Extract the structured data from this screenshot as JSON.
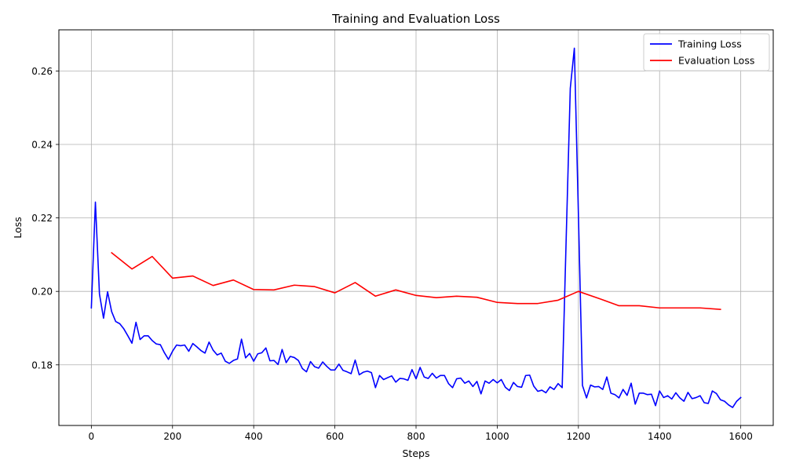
{
  "chart_data": {
    "type": "line",
    "title": "Training and Evaluation Loss",
    "xlabel": "Steps",
    "ylabel": "Loss",
    "xlim": [
      -80,
      1680
    ],
    "ylim": [
      0.1635,
      0.2712
    ],
    "xticks": [
      0,
      200,
      400,
      600,
      800,
      1000,
      1200,
      1400,
      1600
    ],
    "yticks": [
      0.18,
      0.2,
      0.22,
      0.24,
      0.26
    ],
    "xtick_labels": [
      "0",
      "200",
      "400",
      "600",
      "800",
      "1000",
      "1200",
      "1400",
      "1600"
    ],
    "ytick_labels": [
      "0.18",
      "0.20",
      "0.22",
      "0.24",
      "0.26"
    ],
    "grid": true,
    "legend_position": "top-right",
    "series": [
      {
        "name": "Training Loss",
        "color": "#0000ff",
        "x": [
          0,
          10,
          20,
          30,
          40,
          50,
          60,
          70,
          80,
          90,
          100,
          110,
          120,
          130,
          140,
          150,
          160,
          170,
          180,
          190,
          200,
          210,
          220,
          230,
          240,
          250,
          260,
          270,
          280,
          290,
          300,
          310,
          320,
          330,
          340,
          350,
          360,
          370,
          380,
          390,
          400,
          410,
          420,
          430,
          440,
          450,
          460,
          470,
          480,
          490,
          500,
          510,
          520,
          530,
          540,
          550,
          560,
          570,
          580,
          590,
          600,
          610,
          620,
          630,
          640,
          650,
          660,
          670,
          680,
          690,
          700,
          710,
          720,
          730,
          740,
          750,
          760,
          770,
          780,
          790,
          800,
          810,
          820,
          830,
          840,
          850,
          860,
          870,
          880,
          890,
          900,
          910,
          920,
          930,
          940,
          950,
          960,
          970,
          980,
          990,
          1000,
          1010,
          1020,
          1030,
          1040,
          1050,
          1060,
          1070,
          1080,
          1090,
          1100,
          1110,
          1120,
          1130,
          1140,
          1150,
          1160,
          1170,
          1180,
          1190,
          1200,
          1210,
          1220,
          1230,
          1240,
          1250,
          1260,
          1270,
          1280,
          1290,
          1300,
          1310,
          1320,
          1330,
          1340,
          1350,
          1360,
          1370,
          1380,
          1390,
          1400,
          1410,
          1420,
          1430,
          1440,
          1450,
          1460,
          1470,
          1480,
          1490,
          1500,
          1510,
          1520,
          1530,
          1540,
          1550,
          1560,
          1570,
          1580,
          1590,
          1600
        ],
        "y": [
          0.1955,
          0.2243,
          0.1993,
          0.1927,
          0.1999,
          0.1945,
          0.1918,
          0.1912,
          0.1898,
          0.1879,
          0.1859,
          0.1916,
          0.1869,
          0.1879,
          0.1879,
          0.1866,
          0.1857,
          0.1855,
          0.1833,
          0.1815,
          0.1837,
          0.1854,
          0.1852,
          0.1854,
          0.1837,
          0.1858,
          0.1849,
          0.1839,
          0.1832,
          0.1862,
          0.184,
          0.1827,
          0.1832,
          0.181,
          0.1804,
          0.1812,
          0.1816,
          0.187,
          0.1819,
          0.1831,
          0.181,
          0.183,
          0.1833,
          0.1846,
          0.1811,
          0.1812,
          0.1801,
          0.1842,
          0.1806,
          0.1823,
          0.182,
          0.1812,
          0.179,
          0.1781,
          0.1809,
          0.1795,
          0.1791,
          0.1808,
          0.1796,
          0.1786,
          0.1786,
          0.1802,
          0.1785,
          0.1781,
          0.1776,
          0.1813,
          0.1773,
          0.178,
          0.1783,
          0.1779,
          0.1738,
          0.1771,
          0.176,
          0.1765,
          0.177,
          0.1753,
          0.1763,
          0.1762,
          0.1758,
          0.1787,
          0.1762,
          0.1793,
          0.1767,
          0.1763,
          0.1777,
          0.1764,
          0.1771,
          0.1771,
          0.1749,
          0.1738,
          0.1762,
          0.1764,
          0.175,
          0.1756,
          0.1741,
          0.1755,
          0.1721,
          0.1756,
          0.175,
          0.176,
          0.1751,
          0.176,
          0.1739,
          0.173,
          0.1752,
          0.1741,
          0.1739,
          0.1771,
          0.1772,
          0.1742,
          0.1728,
          0.1731,
          0.1724,
          0.174,
          0.1733,
          0.1749,
          0.1738,
          0.2148,
          0.2553,
          0.2662,
          0.221,
          0.1744,
          0.171,
          0.1745,
          0.174,
          0.1741,
          0.1733,
          0.1767,
          0.1723,
          0.1719,
          0.171,
          0.1733,
          0.1717,
          0.175,
          0.1693,
          0.1723,
          0.1723,
          0.1719,
          0.172,
          0.1689,
          0.1729,
          0.1711,
          0.1716,
          0.1707,
          0.1724,
          0.171,
          0.1701,
          0.1725,
          0.1708,
          0.1711,
          0.1716,
          0.1697,
          0.1695,
          0.1729,
          0.1722,
          0.1705,
          0.1701,
          0.1691,
          0.1684,
          0.1701,
          0.1711
        ]
      },
      {
        "name": "Evaluation Loss",
        "color": "#ff0000",
        "x": [
          50,
          100,
          150,
          200,
          250,
          300,
          350,
          400,
          450,
          500,
          550,
          600,
          650,
          700,
          750,
          800,
          850,
          900,
          950,
          1000,
          1050,
          1100,
          1150,
          1200,
          1250,
          1300,
          1350,
          1400,
          1450,
          1500,
          1550
        ],
        "y": [
          0.2105,
          0.2061,
          0.2095,
          0.2036,
          0.2042,
          0.2016,
          0.2031,
          0.2005,
          0.2004,
          0.2017,
          0.2013,
          0.1996,
          0.2024,
          0.1987,
          0.2004,
          0.1989,
          0.1983,
          0.1987,
          0.1984,
          0.197,
          0.1967,
          0.1967,
          0.1976,
          0.2,
          0.1981,
          0.1961,
          0.1961,
          0.1955,
          0.1955,
          0.1955,
          0.1951
        ]
      }
    ]
  }
}
